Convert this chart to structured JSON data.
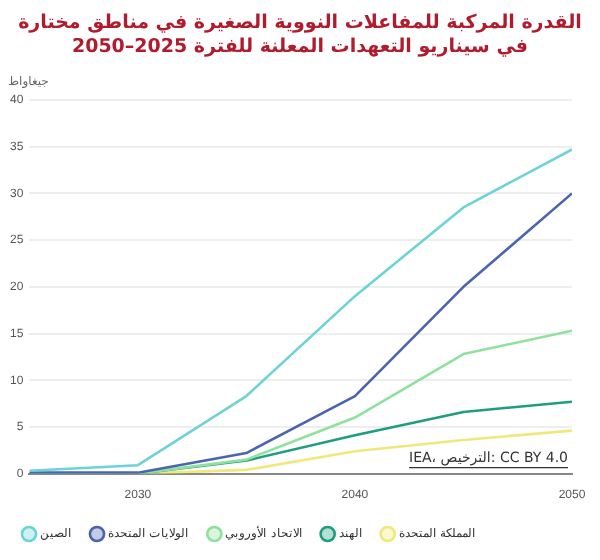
{
  "chart_data": {
    "type": "line",
    "title": "القدرة المركبة للمفاعلات النووية الصغيرة في مناطق مختارة في سيناريو التعهدات المعلنة للفترة 2025–2050",
    "ylabel": "جيغاواط",
    "x": [
      2025,
      2030,
      2035,
      2040,
      2045,
      2050
    ],
    "series": [
      {
        "name": "الصين",
        "color": "#6dd3d6",
        "values": [
          0.3,
          0.9,
          8.3,
          19,
          28.5,
          34.7
        ]
      },
      {
        "name": "الولايات المتحدة",
        "color": "#4b64b0",
        "values": [
          0.1,
          0.1,
          2.2,
          8.3,
          20,
          30
        ]
      },
      {
        "name": "الاتحاد الأوروبي",
        "color": "#8ee29e",
        "values": [
          0,
          0,
          1.5,
          6,
          12.8,
          15.3
        ]
      },
      {
        "name": "الهند",
        "color": "#1f9e7f",
        "values": [
          0,
          0,
          1.4,
          4.1,
          6.6,
          7.7
        ]
      },
      {
        "name": "المملكة المتحدة",
        "color": "#f0e87a",
        "values": [
          null,
          0,
          0.4,
          2.4,
          3.6,
          4.6
        ]
      }
    ],
    "xlim": [
      2025,
      2050
    ],
    "xticks": [
      2030,
      2040,
      2050
    ],
    "ylim": [
      0,
      40
    ],
    "yticks": [
      0,
      5,
      10,
      15,
      20,
      25,
      30,
      35,
      40
    ],
    "grid": "y",
    "legend": "bottom",
    "marker": "none",
    "line_style": "solid",
    "annotations": [
      "IEA، الترخيص: CC BY 4.0"
    ]
  }
}
